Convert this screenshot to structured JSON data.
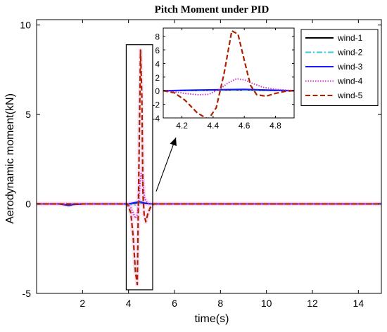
{
  "colors": {
    "wind-1": "#000000",
    "wind-2": "#33ccdd",
    "wind-3": "#1a1aff",
    "wind-4": "#cc33cc",
    "wind-5": "#aa2200",
    "halo": "#f7cfee"
  },
  "chart_data": [
    {
      "id": "main",
      "type": "line",
      "title": "Pitch Moment under PID",
      "xlabel": "time(s)",
      "ylabel": "Aerodynamic moment(kN)",
      "xlim": [
        0,
        15
      ],
      "ylim": [
        -5,
        10.3
      ],
      "xticks": [
        2,
        4,
        6,
        8,
        10,
        12,
        14
      ],
      "yticks": [
        -5,
        0,
        5,
        10
      ],
      "grid": false,
      "legend_position": "top-right",
      "series": [
        {
          "name": "wind-1",
          "style": "solid",
          "x": [
            0,
            1.0,
            1.4,
            1.6,
            2.0,
            4.0,
            4.3,
            4.5,
            4.7,
            5.0,
            15
          ],
          "y": [
            0,
            0,
            -0.08,
            -0.03,
            0,
            0,
            0.05,
            0.08,
            0.03,
            0,
            0
          ]
        },
        {
          "name": "wind-2",
          "style": "dashdot",
          "x": [
            0,
            4.0,
            4.3,
            4.5,
            4.7,
            5.0,
            15
          ],
          "y": [
            0,
            0,
            -0.05,
            0.1,
            0.05,
            0,
            0
          ]
        },
        {
          "name": "wind-3",
          "style": "solid",
          "x": [
            0,
            1.0,
            1.4,
            1.6,
            2.0,
            4.0,
            4.3,
            4.5,
            4.7,
            5.0,
            15
          ],
          "y": [
            0,
            0,
            -0.06,
            -0.02,
            0,
            0,
            0.08,
            0.12,
            0.05,
            0,
            0
          ]
        },
        {
          "name": "wind-4",
          "style": "dotted",
          "x": [
            0,
            4.0,
            4.1,
            4.2,
            4.3,
            4.38,
            4.45,
            4.5,
            4.55,
            4.6,
            4.65,
            4.7,
            4.8,
            4.9,
            5.0,
            15
          ],
          "y": [
            0,
            0,
            -0.2,
            -0.5,
            -0.8,
            -0.6,
            0.2,
            1.2,
            1.7,
            1.5,
            0.9,
            0.3,
            0.1,
            0,
            0,
            0
          ]
        },
        {
          "name": "wind-5",
          "style": "dashed",
          "x": [
            0,
            3.95,
            4.1,
            4.2,
            4.3,
            4.38,
            4.45,
            4.52,
            4.58,
            4.63,
            4.68,
            4.75,
            4.85,
            4.95,
            5.1,
            15
          ],
          "y": [
            0,
            0,
            -0.5,
            -1.8,
            -3.8,
            -4.5,
            2.0,
            8.6,
            6.0,
            0.5,
            -0.6,
            -1.0,
            -0.5,
            -0.2,
            0,
            0
          ]
        }
      ]
    },
    {
      "id": "inset",
      "type": "line",
      "xlim": [
        4.08,
        4.92
      ],
      "ylim": [
        -4,
        9.2
      ],
      "xticks": [
        4.2,
        4.4,
        4.6,
        4.8
      ],
      "yticks": [
        -4,
        -2,
        0,
        2,
        4,
        6,
        8
      ],
      "series": [
        {
          "name": "wind-1",
          "style": "solid",
          "x": [
            4.08,
            4.3,
            4.45,
            4.6,
            4.75,
            4.92
          ],
          "y": [
            0,
            0.05,
            0.1,
            0.12,
            0.05,
            0
          ]
        },
        {
          "name": "wind-2",
          "style": "dashdot",
          "x": [
            4.08,
            4.3,
            4.5,
            4.7,
            4.92
          ],
          "y": [
            0,
            0.05,
            0.15,
            0.1,
            0
          ]
        },
        {
          "name": "wind-3",
          "style": "solid",
          "x": [
            4.08,
            4.3,
            4.45,
            4.6,
            4.75,
            4.92
          ],
          "y": [
            0,
            0.1,
            0.15,
            0.2,
            0.1,
            0
          ]
        },
        {
          "name": "wind-4",
          "style": "dotted",
          "x": [
            4.08,
            4.15,
            4.22,
            4.3,
            4.37,
            4.44,
            4.5,
            4.55,
            4.6,
            4.65,
            4.72,
            4.8,
            4.92
          ],
          "y": [
            0,
            -0.15,
            -0.4,
            -0.6,
            -0.55,
            0.2,
            1.2,
            1.75,
            1.6,
            1.1,
            0.5,
            0.2,
            0
          ]
        },
        {
          "name": "wind-5",
          "style": "dashed",
          "x": [
            4.08,
            4.15,
            4.22,
            4.3,
            4.37,
            4.42,
            4.47,
            4.52,
            4.56,
            4.6,
            4.64,
            4.68,
            4.74,
            4.8,
            4.86,
            4.92
          ],
          "y": [
            0,
            -0.3,
            -1.4,
            -3.3,
            -4.2,
            -2.5,
            2.5,
            8.8,
            8.3,
            4.5,
            0.8,
            -0.6,
            -0.8,
            -0.4,
            -0.1,
            0
          ]
        }
      ]
    }
  ]
}
